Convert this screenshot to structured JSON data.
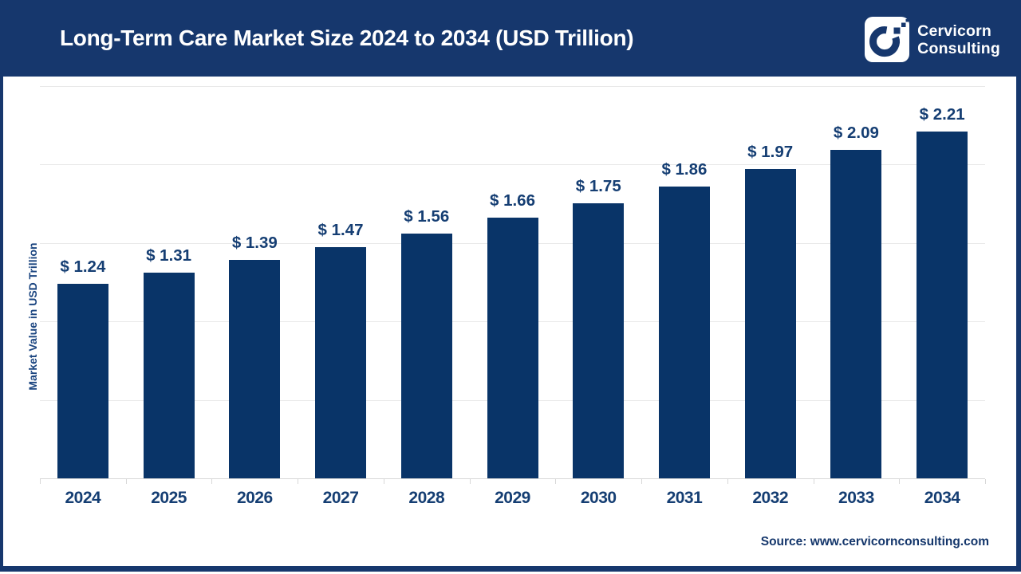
{
  "header": {
    "title": "Long-Term Care Market Size 2024 to 2034 (USD Trillion)",
    "brand": {
      "line1": "Cervicorn",
      "line2": "Consulting"
    }
  },
  "chart_data": {
    "type": "bar",
    "title": "Long-Term Care Market Size 2024 to 2034 (USD Trillion)",
    "categories": [
      "2024",
      "2025",
      "2026",
      "2027",
      "2028",
      "2029",
      "2030",
      "2031",
      "2032",
      "2033",
      "2034"
    ],
    "values": [
      1.24,
      1.31,
      1.39,
      1.47,
      1.56,
      1.66,
      1.75,
      1.86,
      1.97,
      2.09,
      2.21
    ],
    "value_labels": [
      "$ 1.24",
      "$ 1.31",
      "$ 1.39",
      "$ 1.47",
      "$ 1.56",
      "$ 1.66",
      "$ 1.75",
      "$ 1.86",
      "$ 1.97",
      "$ 2.09",
      "$ 2.21"
    ],
    "value_prefix": "$ ",
    "xlabel": "",
    "ylabel": "Market Value in USD Trillion",
    "ylim": [
      0,
      2.54
    ],
    "gridline_values": [
      0.5,
      1.0,
      1.5,
      2.0,
      2.5
    ],
    "grid": "horizontal-light",
    "legend": "none",
    "bar_color": "#093468",
    "label_color": "#153e73"
  },
  "footer": {
    "source_label": "Source: www.cervicornconsulting.com"
  },
  "colors": {
    "band_navy": "#16376d",
    "bar_navy": "#093468",
    "text_navy": "#153e73",
    "gridline": "#e9e9e9",
    "axis": "#d8d8d8",
    "background": "#ffffff"
  }
}
